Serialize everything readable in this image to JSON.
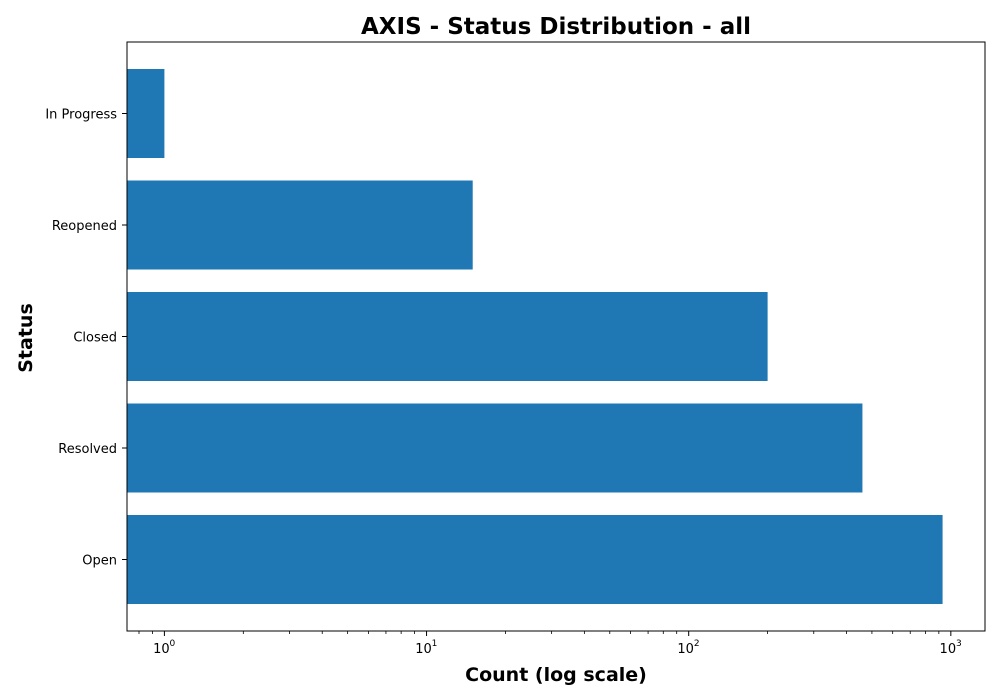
{
  "chart_data": {
    "type": "bar",
    "orientation": "horizontal",
    "title": "AXIS - Status Distribution - all",
    "xlabel": "Count (log scale)",
    "ylabel": "Status",
    "x_scale": "log",
    "xlim": [
      0.72,
      1350
    ],
    "x_ticks": [
      1,
      10,
      100,
      1000
    ],
    "x_tick_labels": [
      {
        "base": "10",
        "exp": "0"
      },
      {
        "base": "10",
        "exp": "1"
      },
      {
        "base": "10",
        "exp": "2"
      },
      {
        "base": "10",
        "exp": "3"
      }
    ],
    "categories": [
      "Open",
      "Resolved",
      "Closed",
      "Reopened",
      "In Progress"
    ],
    "values": [
      930,
      460,
      200,
      15,
      1
    ],
    "bar_color": "#1f77b4",
    "grid": false,
    "legend": "none"
  }
}
